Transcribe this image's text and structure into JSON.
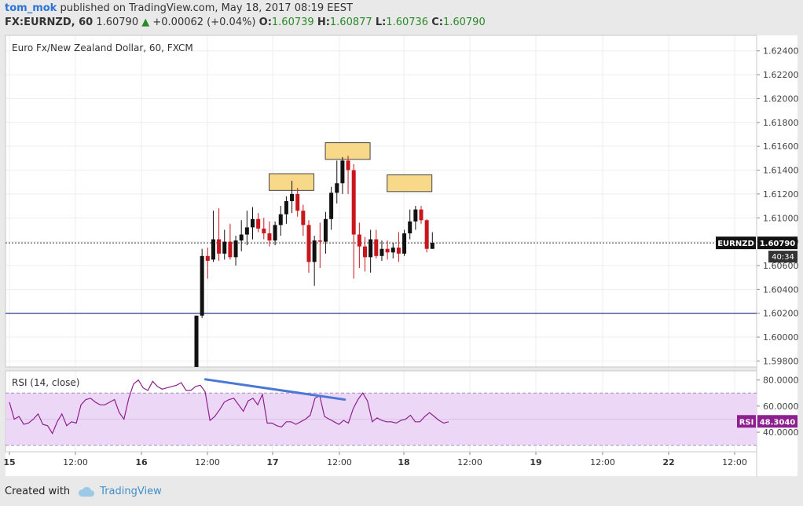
{
  "header": {
    "author": "tom_mok",
    "published_text": "published on TradingView.com, May 18, 2017 08:19 EEST",
    "symbol_line": {
      "symbol": "FX:EURNZD, 60",
      "last": "1.60790",
      "change": "+0.00062 (+0.04%)",
      "o_label": "O:",
      "o_value": "1.60739",
      "h_label": "H:",
      "h_value": "1.60877",
      "l_label": "L:",
      "l_value": "1.60736",
      "c_label": "C:",
      "c_value": "1.60790"
    }
  },
  "footer": {
    "created_with": "Created with",
    "brand": "TradingView",
    "brand_icon": "cloud-logo-icon"
  },
  "colors": {
    "up_candle": "#111111",
    "down_candle": "#c8161d",
    "rsi_line": "#8e1f8e",
    "rsi_band": "#ecd8f6",
    "hline": "#1a237e",
    "trendline": "#4a78d4",
    "annotation_box": "#f8d98a",
    "price_tag_bg": "#111111"
  },
  "chart_data": [
    {
      "type": "candlestick",
      "title": "Euro Fx/New Zealand Dollar, 60, FXCM",
      "y_ticks": [
        "1.62400",
        "1.62200",
        "1.62000",
        "1.61800",
        "1.61600",
        "1.61400",
        "1.61200",
        "1.61000",
        "1.60800",
        "1.60600",
        "1.60400",
        "1.60200",
        "1.60000",
        "1.59800"
      ],
      "ylim": [
        1.5975,
        1.6253
      ],
      "x_ticks": [
        "15",
        "12:00",
        "16",
        "12:00",
        "17",
        "12:00",
        "18",
        "12:00",
        "19",
        "12:00",
        "22",
        "12:00"
      ],
      "candles": [
        [
          1.5975,
          1.6018,
          1.5975,
          1.6018
        ],
        [
          1.6018,
          1.6074,
          1.6016,
          1.6068
        ],
        [
          1.6068,
          1.6075,
          1.6049,
          1.6064
        ],
        [
          1.6065,
          1.6106,
          1.6063,
          1.6082
        ],
        [
          1.6082,
          1.6108,
          1.6064,
          1.607
        ],
        [
          1.607,
          1.609,
          1.6065,
          1.608
        ],
        [
          1.608,
          1.6095,
          1.6065,
          1.6067
        ],
        [
          1.6067,
          1.6085,
          1.606,
          1.6081
        ],
        [
          1.6081,
          1.6098,
          1.6072,
          1.6086
        ],
        [
          1.6086,
          1.6106,
          1.6077,
          1.6092
        ],
        [
          1.6092,
          1.6109,
          1.6082,
          1.6099
        ],
        [
          1.6099,
          1.6104,
          1.6088,
          1.6091
        ],
        [
          1.6091,
          1.61,
          1.6082,
          1.6087
        ],
        [
          1.6087,
          1.6097,
          1.6076,
          1.6081
        ],
        [
          1.6081,
          1.6097,
          1.6077,
          1.6094
        ],
        [
          1.6094,
          1.611,
          1.6085,
          1.6103
        ],
        [
          1.6103,
          1.6118,
          1.6095,
          1.6114
        ],
        [
          1.6114,
          1.6131,
          1.6104,
          1.612
        ],
        [
          1.612,
          1.6125,
          1.6101,
          1.6106
        ],
        [
          1.6106,
          1.6111,
          1.6085,
          1.6094
        ],
        [
          1.6094,
          1.6098,
          1.6054,
          1.6063
        ],
        [
          1.6063,
          1.6085,
          1.6043,
          1.6081
        ],
        [
          1.6081,
          1.6096,
          1.6058,
          1.608
        ],
        [
          1.608,
          1.6105,
          1.607,
          1.6099
        ],
        [
          1.6099,
          1.6126,
          1.609,
          1.6121
        ],
        [
          1.6121,
          1.6148,
          1.6112,
          1.6129
        ],
        [
          1.6129,
          1.6151,
          1.612,
          1.6148
        ],
        [
          1.6148,
          1.6152,
          1.612,
          1.614
        ],
        [
          1.614,
          1.6145,
          1.6049,
          1.6086
        ],
        [
          1.6086,
          1.6096,
          1.6058,
          1.6076
        ],
        [
          1.6076,
          1.6084,
          1.6055,
          1.6067
        ],
        [
          1.6067,
          1.609,
          1.6054,
          1.6082
        ],
        [
          1.6082,
          1.609,
          1.6066,
          1.6068
        ],
        [
          1.6068,
          1.6081,
          1.6064,
          1.6074
        ],
        [
          1.6074,
          1.6081,
          1.6065,
          1.6071
        ],
        [
          1.6071,
          1.6079,
          1.6066,
          1.6075
        ],
        [
          1.6075,
          1.6088,
          1.6063,
          1.607
        ],
        [
          1.607,
          1.609,
          1.6068,
          1.6087
        ],
        [
          1.6087,
          1.6107,
          1.6082,
          1.6097
        ],
        [
          1.6097,
          1.611,
          1.609,
          1.6107
        ],
        [
          1.6107,
          1.611,
          1.6095,
          1.6098
        ],
        [
          1.6098,
          1.6099,
          1.6071,
          1.6074
        ],
        [
          1.6074,
          1.6088,
          1.6074,
          1.6079
        ]
      ],
      "reference_line": 1.602,
      "current_price": {
        "label": "EURNZD",
        "value": "1.60790",
        "countdown": "40:34"
      },
      "annotations": [
        {
          "candle": 17,
          "price_low": 1.6123,
          "price_high": 1.6137
        },
        {
          "candle": 27,
          "price_low": 1.6149,
          "price_high": 1.6163
        },
        {
          "candle": 38,
          "price_low": 1.6122,
          "price_high": 1.6136
        }
      ]
    },
    {
      "type": "line",
      "title": "RSI (14, close)",
      "ylim": [
        25,
        87
      ],
      "y_ticks": [
        "80.0000",
        "60.0000",
        "40.0000"
      ],
      "band": [
        30,
        70
      ],
      "midline": 50,
      "current": {
        "label": "RSI",
        "value": "48.3040"
      },
      "values": [
        63,
        50,
        52,
        46,
        47,
        50,
        54,
        46,
        45,
        39,
        48,
        54,
        45,
        48,
        47,
        61,
        65,
        66,
        63,
        61,
        61,
        63,
        65,
        55,
        50,
        66,
        77,
        80,
        74,
        72,
        79,
        75,
        73,
        74,
        75,
        76,
        78,
        72,
        72,
        75,
        76,
        71,
        49,
        52,
        57,
        63,
        65,
        66,
        61,
        56,
        64,
        66,
        61,
        69,
        47,
        47,
        45,
        44,
        48,
        48,
        46,
        48,
        50,
        53,
        66,
        68,
        52,
        50,
        48,
        46,
        49,
        47,
        58,
        65,
        70,
        64,
        48,
        51,
        49,
        48,
        48,
        47,
        49,
        50,
        53,
        48,
        48,
        52,
        55,
        52,
        49,
        47,
        48
      ],
      "trendline": {
        "from": [
          1.6,
          80.5
        ],
        "to": [
          26.4,
          65.0
        ]
      }
    }
  ]
}
